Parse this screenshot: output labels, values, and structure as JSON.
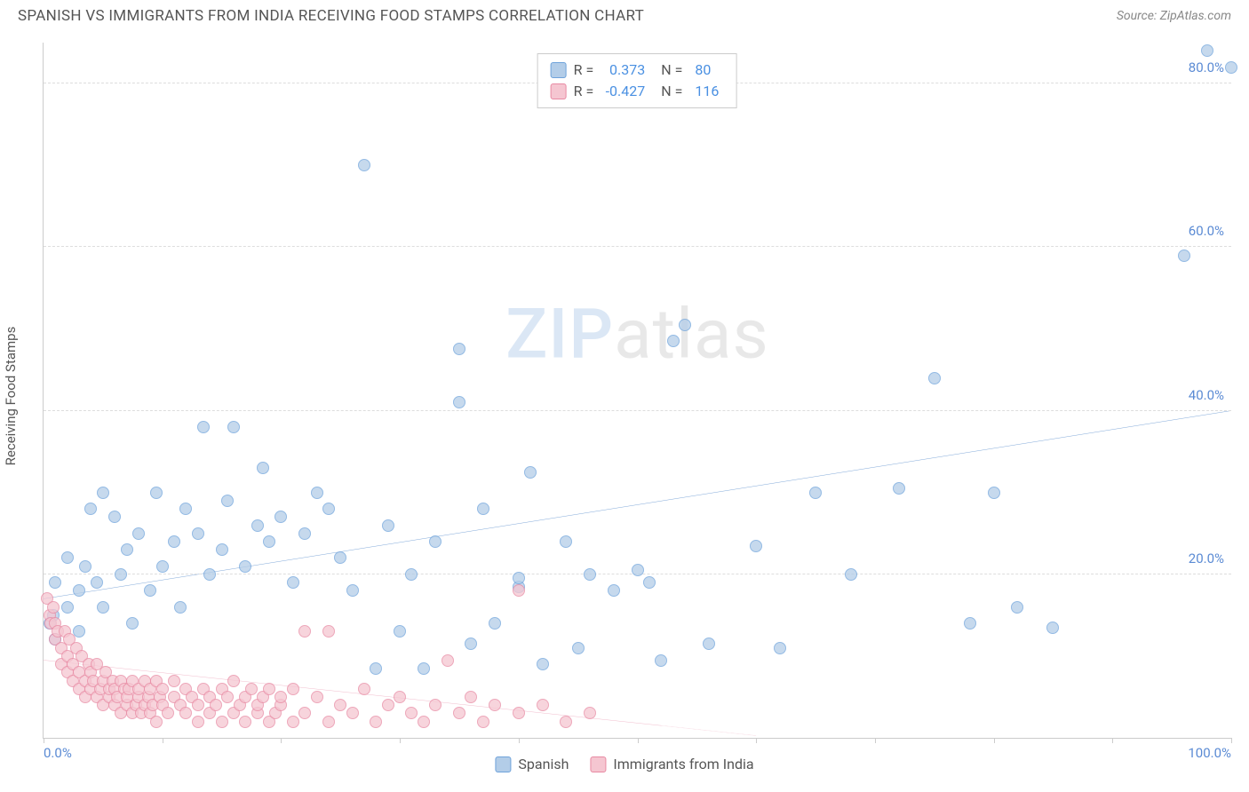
{
  "header": {
    "title": "SPANISH VS IMMIGRANTS FROM INDIA RECEIVING FOOD STAMPS CORRELATION CHART",
    "source": "Source: ZipAtlas.com"
  },
  "y_axis": {
    "label": "Receiving Food Stamps"
  },
  "watermark": {
    "part1": "ZIP",
    "part2": "atlas"
  },
  "chart": {
    "type": "scatter",
    "xlim": [
      0,
      100
    ],
    "ylim": [
      0,
      85
    ],
    "x_ticks": [
      0,
      10,
      20,
      30,
      40,
      50,
      60,
      70,
      80,
      90,
      100
    ],
    "x_tick_labels": {
      "start": "0.0%",
      "end": "100.0%"
    },
    "y_gridlines": [
      20,
      40,
      60,
      80
    ],
    "y_tick_labels": [
      "20.0%",
      "40.0%",
      "60.0%",
      "80.0%"
    ],
    "background_color": "#ffffff",
    "grid_color": "#dddddd",
    "axis_color": "#cccccc",
    "series": [
      {
        "name": "Spanish",
        "fill_color": "#b3cde8",
        "stroke_color": "#6fa3db",
        "dot_radius": 7,
        "trend": {
          "x1": 0,
          "y1": 17,
          "x2": 100,
          "y2": 40,
          "color": "#2e6fc0",
          "width": 2.5
        },
        "points": [
          [
            0.5,
            14
          ],
          [
            0.8,
            15
          ],
          [
            1,
            19
          ],
          [
            1,
            12
          ],
          [
            2,
            22
          ],
          [
            2,
            16
          ],
          [
            3,
            13
          ],
          [
            3,
            18
          ],
          [
            3.5,
            21
          ],
          [
            4,
            28
          ],
          [
            4.5,
            19
          ],
          [
            5,
            30
          ],
          [
            5,
            16
          ],
          [
            6,
            27
          ],
          [
            6.5,
            20
          ],
          [
            7,
            23
          ],
          [
            7.5,
            14
          ],
          [
            8,
            25
          ],
          [
            9,
            18
          ],
          [
            9.5,
            30
          ],
          [
            10,
            21
          ],
          [
            11,
            24
          ],
          [
            11.5,
            16
          ],
          [
            12,
            28
          ],
          [
            13,
            25
          ],
          [
            13.5,
            38
          ],
          [
            14,
            20
          ],
          [
            15,
            23
          ],
          [
            15.5,
            29
          ],
          [
            16,
            38
          ],
          [
            17,
            21
          ],
          [
            18,
            26
          ],
          [
            18.5,
            33
          ],
          [
            19,
            24
          ],
          [
            20,
            27
          ],
          [
            21,
            19
          ],
          [
            22,
            25
          ],
          [
            23,
            30
          ],
          [
            24,
            28
          ],
          [
            25,
            22
          ],
          [
            26,
            18
          ],
          [
            27,
            70
          ],
          [
            28,
            8.5
          ],
          [
            29,
            26
          ],
          [
            30,
            13
          ],
          [
            31,
            20
          ],
          [
            32,
            8.5
          ],
          [
            33,
            24
          ],
          [
            35,
            47.5
          ],
          [
            35,
            41
          ],
          [
            36,
            11.5
          ],
          [
            37,
            28
          ],
          [
            38,
            14
          ],
          [
            40,
            18.5
          ],
          [
            40,
            19.5
          ],
          [
            41,
            32.5
          ],
          [
            42,
            9
          ],
          [
            44,
            24
          ],
          [
            45,
            11
          ],
          [
            46,
            20
          ],
          [
            48,
            18
          ],
          [
            50,
            20.5
          ],
          [
            51,
            19
          ],
          [
            52,
            9.5
          ],
          [
            53,
            48.5
          ],
          [
            54,
            50.5
          ],
          [
            56,
            11.5
          ],
          [
            60,
            23.5
          ],
          [
            62,
            11
          ],
          [
            65,
            30
          ],
          [
            68,
            20
          ],
          [
            72,
            30.5
          ],
          [
            75,
            44
          ],
          [
            78,
            14
          ],
          [
            80,
            30
          ],
          [
            82,
            16
          ],
          [
            85,
            13.5
          ],
          [
            96,
            59
          ],
          [
            98,
            84
          ],
          [
            100,
            82
          ]
        ]
      },
      {
        "name": "Immigrants from India",
        "fill_color": "#f5c6d1",
        "stroke_color": "#e88aa3",
        "dot_radius": 7,
        "trend": {
          "x1": 0,
          "y1": 9.5,
          "x2": 52,
          "y2": 1.5,
          "dash_x": 60,
          "color": "#e27396",
          "width": 2
        },
        "points": [
          [
            0.3,
            17
          ],
          [
            0.5,
            15
          ],
          [
            0.6,
            14
          ],
          [
            0.8,
            16
          ],
          [
            1,
            12
          ],
          [
            1,
            14
          ],
          [
            1.2,
            13
          ],
          [
            1.5,
            11
          ],
          [
            1.5,
            9
          ],
          [
            1.8,
            13
          ],
          [
            2,
            10
          ],
          [
            2,
            8
          ],
          [
            2.2,
            12
          ],
          [
            2.5,
            9
          ],
          [
            2.5,
            7
          ],
          [
            2.8,
            11
          ],
          [
            3,
            8
          ],
          [
            3,
            6
          ],
          [
            3.2,
            10
          ],
          [
            3.5,
            7
          ],
          [
            3.5,
            5
          ],
          [
            3.8,
            9
          ],
          [
            4,
            6
          ],
          [
            4,
            8
          ],
          [
            4.2,
            7
          ],
          [
            4.5,
            5
          ],
          [
            4.5,
            9
          ],
          [
            4.8,
            6
          ],
          [
            5,
            7
          ],
          [
            5,
            4
          ],
          [
            5.2,
            8
          ],
          [
            5.5,
            5
          ],
          [
            5.5,
            6
          ],
          [
            5.8,
            7
          ],
          [
            6,
            4
          ],
          [
            6,
            6
          ],
          [
            6.2,
            5
          ],
          [
            6.5,
            7
          ],
          [
            6.5,
            3
          ],
          [
            6.8,
            6
          ],
          [
            7,
            4
          ],
          [
            7,
            5
          ],
          [
            7.2,
            6
          ],
          [
            7.5,
            3
          ],
          [
            7.5,
            7
          ],
          [
            7.8,
            4
          ],
          [
            8,
            5
          ],
          [
            8,
            6
          ],
          [
            8.2,
            3
          ],
          [
            8.5,
            7
          ],
          [
            8.5,
            4
          ],
          [
            8.8,
            5
          ],
          [
            9,
            6
          ],
          [
            9,
            3
          ],
          [
            9.2,
            4
          ],
          [
            9.5,
            7
          ],
          [
            9.5,
            2
          ],
          [
            9.8,
            5
          ],
          [
            10,
            4
          ],
          [
            10,
            6
          ],
          [
            10.5,
            3
          ],
          [
            11,
            5
          ],
          [
            11,
            7
          ],
          [
            11.5,
            4
          ],
          [
            12,
            3
          ],
          [
            12,
            6
          ],
          [
            12.5,
            5
          ],
          [
            13,
            4
          ],
          [
            13,
            2
          ],
          [
            13.5,
            6
          ],
          [
            14,
            3
          ],
          [
            14,
            5
          ],
          [
            14.5,
            4
          ],
          [
            15,
            6
          ],
          [
            15,
            2
          ],
          [
            15.5,
            5
          ],
          [
            16,
            3
          ],
          [
            16,
            7
          ],
          [
            16.5,
            4
          ],
          [
            17,
            5
          ],
          [
            17,
            2
          ],
          [
            17.5,
            6
          ],
          [
            18,
            3
          ],
          [
            18,
            4
          ],
          [
            18.5,
            5
          ],
          [
            19,
            2
          ],
          [
            19,
            6
          ],
          [
            19.5,
            3
          ],
          [
            20,
            4
          ],
          [
            20,
            5
          ],
          [
            21,
            2
          ],
          [
            21,
            6
          ],
          [
            22,
            3
          ],
          [
            22,
            13
          ],
          [
            23,
            5
          ],
          [
            24,
            2
          ],
          [
            24,
            13
          ],
          [
            25,
            4
          ],
          [
            26,
            3
          ],
          [
            27,
            6
          ],
          [
            28,
            2
          ],
          [
            29,
            4
          ],
          [
            30,
            5
          ],
          [
            31,
            3
          ],
          [
            32,
            2
          ],
          [
            33,
            4
          ],
          [
            34,
            9.5
          ],
          [
            35,
            3
          ],
          [
            36,
            5
          ],
          [
            37,
            2
          ],
          [
            38,
            4
          ],
          [
            40,
            3
          ],
          [
            40,
            18
          ],
          [
            42,
            4
          ],
          [
            44,
            2
          ],
          [
            46,
            3
          ]
        ]
      }
    ]
  },
  "legend_top": {
    "rows": [
      {
        "swatch_fill": "#b3cde8",
        "swatch_stroke": "#6fa3db",
        "r_label": "R =",
        "r_value": "0.373",
        "n_label": "N =",
        "n_value": "80"
      },
      {
        "swatch_fill": "#f5c6d1",
        "swatch_stroke": "#e88aa3",
        "r_label": "R =",
        "r_value": "-0.427",
        "n_label": "N =",
        "n_value": "116"
      }
    ]
  },
  "legend_bottom": {
    "items": [
      {
        "swatch_fill": "#b3cde8",
        "swatch_stroke": "#6fa3db",
        "label": "Spanish"
      },
      {
        "swatch_fill": "#f5c6d1",
        "swatch_stroke": "#e88aa3",
        "label": "Immigrants from India"
      }
    ]
  }
}
